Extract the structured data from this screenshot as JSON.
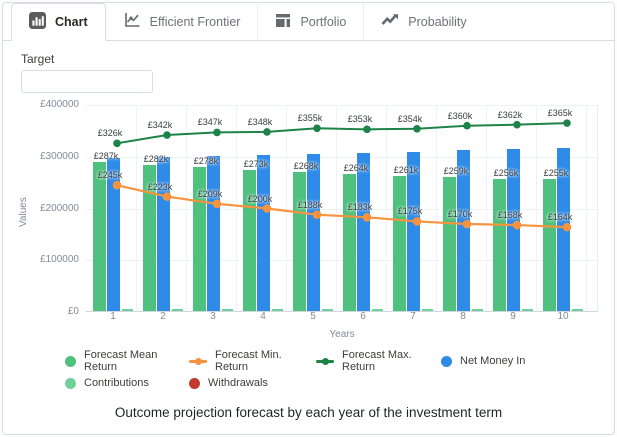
{
  "tabs": [
    {
      "label": "Chart",
      "active": true,
      "icon": "bar-chart-icon"
    },
    {
      "label": "Efficient Frontier",
      "active": false,
      "icon": "line-chart-icon"
    },
    {
      "label": "Portfolio",
      "active": false,
      "icon": "layout-icon"
    },
    {
      "label": "Probability",
      "active": false,
      "icon": "trend-arrow-icon"
    }
  ],
  "target": {
    "label": "Target",
    "value": "",
    "placeholder": ""
  },
  "chart_data": {
    "type": "bar",
    "subtype": "grouped bars with two overlay lines",
    "x": [
      1,
      2,
      3,
      4,
      5,
      6,
      7,
      8,
      9,
      10
    ],
    "xlabel": "Years",
    "ylabel": "Values",
    "ylim": [
      0,
      400000
    ],
    "grid": true,
    "y_ticks": [
      {
        "value": 400000,
        "label": "£400000"
      },
      {
        "value": 300000,
        "label": "£300000"
      },
      {
        "value": 200000,
        "label": "£200000"
      },
      {
        "value": 100000,
        "label": "£100000"
      },
      {
        "value": 0,
        "label": "£0"
      }
    ],
    "series": [
      {
        "name": "Forecast Mean Return",
        "type": "bar",
        "color": "#4ec17e",
        "values": [
          287000,
          282000,
          278000,
          273000,
          268000,
          264000,
          261000,
          259000,
          256000,
          255000
        ],
        "labels": [
          "£287k",
          "£282k",
          "£278k",
          "£273k",
          "£268k",
          "£264k",
          "£261k",
          "£259k",
          "£256k",
          "£255k"
        ]
      },
      {
        "name": "Forecast Min. Return",
        "type": "line",
        "color": "#f6933f",
        "values": [
          245000,
          223000,
          209000,
          200000,
          188000,
          183000,
          175000,
          170000,
          168000,
          164000
        ],
        "labels": [
          "£245k",
          "£223k",
          "£209k",
          "£200k",
          "£188k",
          "£183k",
          "£175k",
          "£170k",
          "£168k",
          "£164k"
        ]
      },
      {
        "name": "Forecast Max. Return",
        "type": "line",
        "color": "#1d8348",
        "values": [
          326000,
          342000,
          347000,
          348000,
          355000,
          353000,
          354000,
          360000,
          362000,
          365000
        ],
        "labels": [
          "£326k",
          "£342k",
          "£347k",
          "£348k",
          "£355k",
          "£353k",
          "£354k",
          "£360k",
          "£362k",
          "£365k"
        ]
      },
      {
        "name": "Net Money In",
        "type": "bar",
        "color": "#2e8be8",
        "values": [
          295000,
          297000,
          299000,
          301000,
          304000,
          306000,
          308000,
          311000,
          313000,
          315000
        ],
        "labels": []
      },
      {
        "name": "Contributions",
        "type": "bar",
        "color": "#6fd09a",
        "values": [
          4000,
          4000,
          4000,
          4000,
          4000,
          4000,
          4000,
          4000,
          4000,
          4000
        ],
        "labels": []
      },
      {
        "name": "Withdrawals",
        "type": "bar",
        "color": "#c0392b",
        "values": [
          0,
          0,
          0,
          0,
          0,
          0,
          0,
          0,
          0,
          0
        ],
        "labels": []
      }
    ],
    "legend_position": "bottom",
    "caption": "Outcome projection forecast by each year of the investment term"
  }
}
